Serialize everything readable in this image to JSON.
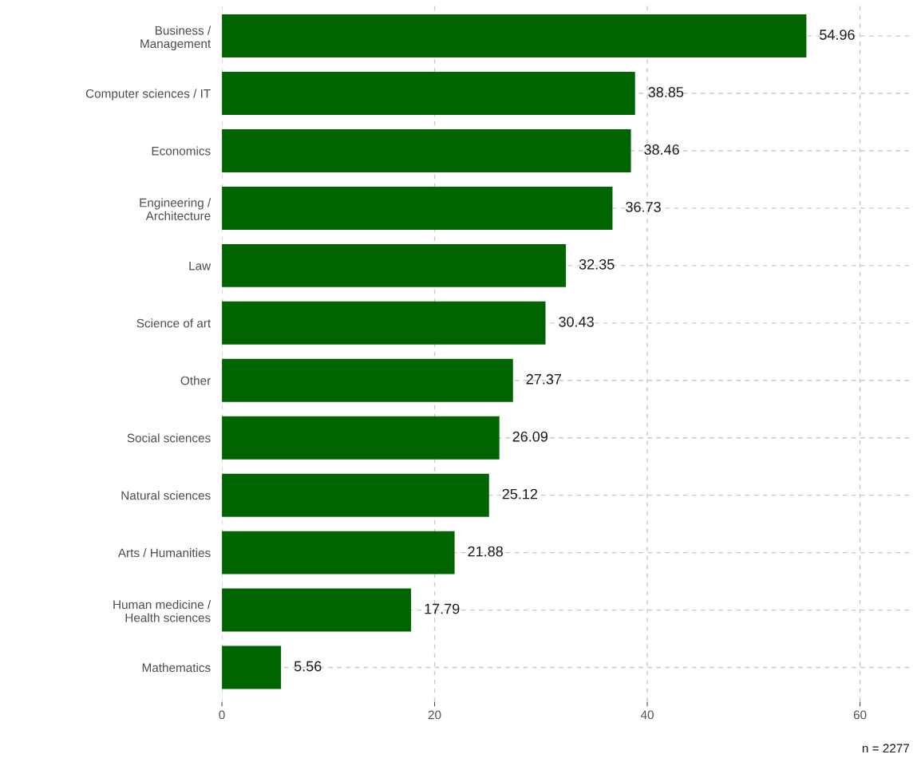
{
  "chart_data": {
    "type": "bar",
    "orientation": "horizontal",
    "categories": [
      "Business /\nManagement",
      "Computer sciences / IT",
      "Economics",
      "Engineering /\nArchitecture",
      "Law",
      "Science of art",
      "Other",
      "Social sciences",
      "Natural sciences",
      "Arts / Humanities",
      "Human medicine /\nHealth sciences",
      "Mathematics"
    ],
    "values": [
      54.96,
      38.85,
      38.46,
      36.73,
      32.35,
      30.43,
      27.37,
      26.09,
      25.12,
      21.88,
      17.79,
      5.56
    ],
    "color": "#006400",
    "xlim": [
      0,
      65
    ],
    "xticks": [
      0,
      20,
      40,
      60
    ],
    "data_labels": true,
    "grid": true,
    "annotations": [
      "n = 2277"
    ]
  }
}
